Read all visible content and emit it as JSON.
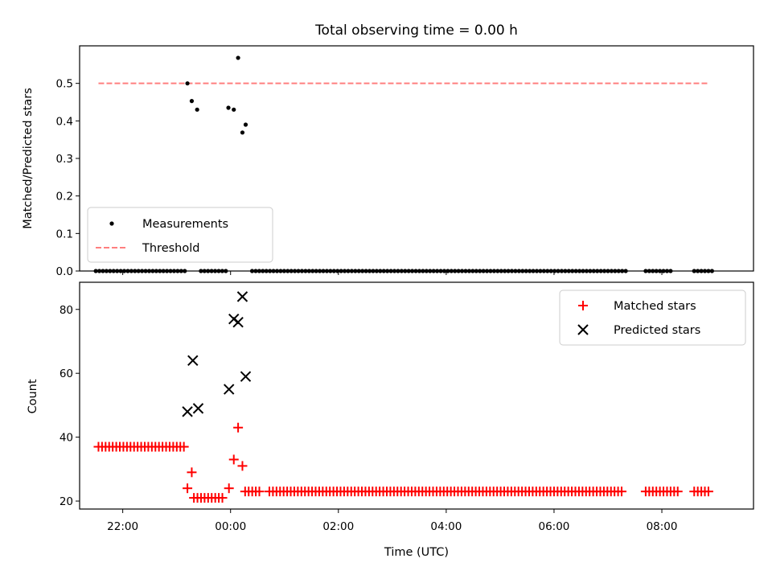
{
  "chart_data": [
    {
      "type": "scatter",
      "title": "Total observing time = 0.00 h",
      "xlabel": "",
      "ylabel": "Matched/Predicted stars",
      "xlim": [
        -2.8,
        9.7
      ],
      "ylim": [
        0,
        0.6
      ],
      "yticks": [
        0.0,
        0.1,
        0.2,
        0.3,
        0.4,
        0.5
      ],
      "ytick_labels": [
        "0.0",
        "0.1",
        "0.2",
        "0.3",
        "0.4",
        "0.5"
      ],
      "series": [
        {
          "name": "Measurements",
          "marker": "dot",
          "color": "#000000",
          "x": [
            -0.8,
            -0.72,
            -0.62,
            -0.04,
            0.06,
            0.14,
            0.22,
            0.28
          ],
          "y": [
            0.5,
            0.453,
            0.43,
            0.435,
            0.43,
            0.568,
            0.369,
            0.39
          ],
          "zero_segments": [
            [
              -2.5,
              -0.85
            ],
            [
              -0.55,
              -0.08
            ],
            [
              0.4,
              7.35
            ],
            [
              7.7,
              8.2
            ],
            [
              8.6,
              8.95
            ]
          ]
        },
        {
          "name": "Threshold",
          "type": "line",
          "style": "dashed",
          "color": "#ff7f7f",
          "x": [
            -2.45,
            8.85
          ],
          "y": [
            0.5,
            0.5
          ]
        }
      ],
      "legend_position": "lower-left",
      "grid": false
    },
    {
      "type": "scatter",
      "title": "",
      "xlabel": "Time (UTC)",
      "ylabel": "Count",
      "xlim": [
        -2.8,
        9.7
      ],
      "ylim": [
        17.5,
        88.5
      ],
      "yticks": [
        20,
        40,
        60,
        80
      ],
      "ytick_labels": [
        "20",
        "40",
        "60",
        "80"
      ],
      "xticks": [
        -2,
        0,
        2,
        4,
        6,
        8
      ],
      "xtick_labels": [
        "22:00",
        "00:00",
        "02:00",
        "04:00",
        "06:00",
        "08:00"
      ],
      "series": [
        {
          "name": "Matched stars",
          "marker": "plus",
          "color": "#ff0000",
          "segments": [
            {
              "x_start": -2.45,
              "x_end": -0.85,
              "y": 37
            },
            {
              "x_start": -0.68,
              "x_end": -0.12,
              "y": 21
            },
            {
              "x_start": 0.27,
              "x_end": 0.55,
              "y": 23
            },
            {
              "x_start": 0.72,
              "x_end": 7.3,
              "y": 23
            },
            {
              "x_start": 7.7,
              "x_end": 8.3,
              "y": 23
            },
            {
              "x_start": 8.6,
              "x_end": 8.9,
              "y": 23
            }
          ],
          "x": [
            -0.8,
            -0.72,
            -0.03,
            0.06,
            0.14,
            0.22
          ],
          "y": [
            24,
            29,
            24,
            33,
            43,
            31
          ]
        },
        {
          "name": "Predicted stars",
          "marker": "x",
          "color": "#000000",
          "x": [
            -0.8,
            -0.7,
            -0.6,
            -0.03,
            0.06,
            0.14,
            0.22,
            0.28
          ],
          "y": [
            48,
            64,
            49,
            55,
            77,
            76,
            84,
            59
          ]
        }
      ],
      "legend_position": "upper-right",
      "grid": false
    }
  ]
}
